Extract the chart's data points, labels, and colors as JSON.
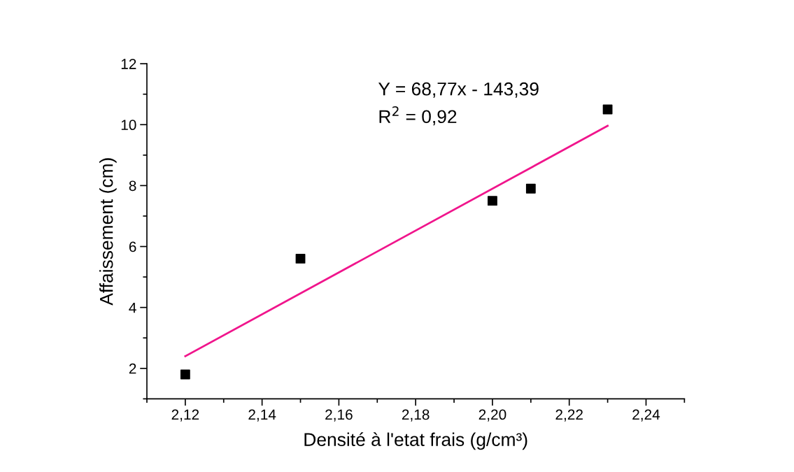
{
  "chart_data": {
    "type": "scatter",
    "xlabel": "Densité à l'etat frais (g/cm³)",
    "ylabel": "Affaissement (cm)",
    "annotations": [
      "Y = 68,77x - 143,39",
      "R$^{2}$ = 0,92"
    ],
    "series": [
      {
        "color": "#000000",
        "marker": "square",
        "x": [
          2.12,
          2.15,
          2.2,
          2.21,
          2.23
        ],
        "values": [
          1.8,
          5.6,
          7.5,
          7.9,
          10.5
        ]
      },
      {
        "type": "line",
        "color": "#f0158c",
        "marker": "none",
        "line_style": "solid",
        "x": [
          2.12,
          2.23
        ],
        "values": [
          2.4,
          9.96
        ]
      }
    ],
    "xlim": [
      2.11,
      2.25
    ],
    "ylim": [
      1,
      12
    ],
    "xticks": [
      {
        "value": 2.11,
        "label": null
      },
      {
        "value": 2.12,
        "label": "2,12"
      },
      {
        "value": 2.13,
        "label": null
      },
      {
        "value": 2.14,
        "label": "2,14"
      },
      {
        "value": 2.15,
        "label": null
      },
      {
        "value": 2.16,
        "label": "2,16"
      },
      {
        "value": 2.17,
        "label": null
      },
      {
        "value": 2.18,
        "label": "2,18"
      },
      {
        "value": 2.19,
        "label": null
      },
      {
        "value": 2.2,
        "label": "2,20"
      },
      {
        "value": 2.21,
        "label": null
      },
      {
        "value": 2.22,
        "label": "2,22"
      },
      {
        "value": 2.23,
        "label": null
      },
      {
        "value": 2.24,
        "label": "2,24"
      },
      {
        "value": 2.25,
        "label": null
      }
    ],
    "yticks": [
      {
        "value": 1,
        "label": null
      },
      2,
      {
        "value": 3,
        "label": null
      },
      4,
      {
        "value": 5,
        "label": null
      },
      6,
      {
        "value": 7,
        "label": null
      },
      8,
      {
        "value": 9,
        "label": null
      },
      10,
      {
        "value": 11,
        "label": null
      },
      12
    ],
    "grid": false
  }
}
